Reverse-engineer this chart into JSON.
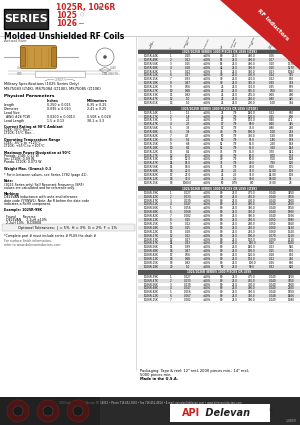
{
  "title_series": "SERIES",
  "title_series_bg": "#2d2d2d",
  "title_series_fg": "#ffffff",
  "product_names": [
    "1025R, 1026R",
    "1025",
    "1026"
  ],
  "product_subtitle": "Molded Unshielded RF Coils",
  "product_color": "#cc2222",
  "corner_label": "RF Inductors",
  "corner_color": "#cc2222",
  "bg_color": "#ffffff",
  "table_header_bg": "#555555",
  "table_alt_row": "#e0e0e0",
  "table1_title": "1025/1025R SERIES 1000 PIECES OR LESS (LT4K)",
  "table2_title": "1025/1025R SERIES 1000 PIECES OR LESS (LT10K)",
  "table3_title": "1026/1026R SERIES 1000 PIECES OR LESS (LT4K)",
  "table4_title": "1026/1026R SERIES 1000 PIECES OR LESS",
  "diag_headers": [
    "Part Number",
    "Inductance (uH)",
    "Tolerance",
    "Q Min",
    "Test Freq (MHz)",
    "SRF (MHz) Min",
    "DC Res (Ohms) Max",
    "Current Rating (mA) Max"
  ],
  "bottom_bar_color": "#3a3a3a",
  "actual_size_text": "Actual Size",
  "mil_spec_text": "Military Specifications (1025 Series Only)\nMS75083 (LT4K), MS75084 (LT10K), MS75085 (LT10K)",
  "phys_param_text": "Physical Parameters",
  "phys_rows": [
    [
      "",
      "Inches",
      "Millimeters"
    ],
    [
      "Length",
      "0.250 ± 0.015",
      "6.35 ± 0.25"
    ],
    [
      "Diameter",
      "0.095 ± 0.010",
      "2.41 ± 0.25"
    ],
    [
      "Lead Size",
      "",
      ""
    ],
    [
      "  AWG #26 TCW",
      "0.0200 ± 0.0013",
      "0.508 ± 0.028"
    ],
    [
      "Lead Length",
      "1.5 ± 0.13",
      "38.1 ± 3.3"
    ]
  ],
  "notes_lines": [
    [
      "bold",
      "Current Rating at 90°C Ambiant"
    ],
    [
      "normal",
      "LT4K: 30°C Rise..."
    ],
    [
      "normal",
      "LT10K: 15°C Rise..."
    ],
    [
      "normal",
      ""
    ],
    [
      "bold",
      "Operating Temperature Range"
    ],
    [
      "normal",
      "LT4K: -65°C to +125°C"
    ],
    [
      "normal",
      "LT10K: +65°C to +105°C"
    ],
    [
      "normal",
      ""
    ],
    [
      "bold",
      "Maximum Power Dissipation at 90°C"
    ],
    [
      "normal",
      "Prewds: LT4K: 0.21 W"
    ],
    [
      "normal",
      "Ins: LT10K: 0.09 W"
    ],
    [
      "normal",
      "Panda: LT10K: 0.073 W"
    ],
    [
      "normal",
      ""
    ],
    [
      "bold",
      "Weight Max. (Grams): 0.3"
    ],
    [
      "normal",
      ""
    ],
    [
      "normal",
      "* For in-between values, see Series 1782 (page 41)."
    ],
    [
      "normal",
      ""
    ],
    [
      "bold",
      "Note:"
    ],
    [
      "normal",
      "(1025 Series only) Self Resonant Frequency (SRF)"
    ],
    [
      "normal",
      "values are calculated and for reference only."
    ],
    [
      "normal",
      ""
    ],
    [
      "bold",
      "Marking:"
    ],
    [
      "normal",
      "DELEVAN inductance with units and tolerance"
    ],
    [
      "normal",
      "date code (YYWWL). Note: An R before the date code"
    ],
    [
      "normal",
      "indicates a RoHS component."
    ],
    [
      "normal",
      ""
    ],
    [
      "bold",
      "Example: 1025R-99K"
    ],
    [
      "normal",
      ""
    ],
    [
      "normal",
      "  Found       Reverse"
    ],
    [
      "normal",
      "  DELEVAN     2.2uH ±10%"
    ],
    [
      "normal",
      "  2.2uH 10%   R-D0808"
    ]
  ],
  "optional_tol": "Optional Tolerances:  J = 5%  H = 3%  G = 2%  F = 1%",
  "complete_pn": "*Complete part # must include series # PLUS the dash #",
  "surface_finish1": "For surface finish information,",
  "surface_finish2": "refer to www.delevaninductors.com",
  "footer1": "Packaging  Tape & reel: 12\" reel, 2000 pieces min.; 14\" reel,",
  "footer2": "5000 pieces min.",
  "footer3": "Made in the U.S.A.",
  "bottom_info": "370 Coulter Rd., East Aurora, NY 14052 • Phone 716-652-3600 • Fax 716-652-4814 • E-mail: apisales@delevan.com • www.delevaninductors.com",
  "date_code": "1.0809",
  "table1_rows": [
    [
      "-44K",
      "1",
      "0.10",
      "±10%",
      "80",
      "25.0",
      "480.0",
      "0.06",
      "1690"
    ],
    [
      "-48K",
      "2",
      "0.12",
      "±10%",
      "54",
      "25.0",
      "480.0",
      "0.07",
      "1530"
    ],
    [
      "-56K",
      "3",
      "0.15",
      "±10%",
      "54",
      "25.0",
      "480.0",
      "0.10",
      "1370"
    ],
    [
      "-68K",
      "4",
      "0.18",
      "±10%",
      "44",
      "25.0",
      "380.0",
      "0.10",
      "1270"
    ],
    [
      "-82K",
      "5",
      "0.22",
      "±10%",
      "35",
      "25.0",
      "350.0",
      "0.13",
      "1084"
    ],
    [
      "-12K",
      "6",
      "0.27",
      "±10%",
      "30",
      "25.0",
      "430.0",
      "0.14",
      "975"
    ],
    [
      "-15K",
      "7",
      "0.33",
      "±10%",
      "30",
      "25.0",
      "410.0",
      "0.22",
      "850"
    ],
    [
      "-18K",
      "8",
      "0.47",
      "±10%",
      "30",
      "25.0",
      "365.0",
      "0.30",
      "718"
    ],
    [
      "-22K",
      "9",
      "0.56",
      "±10%",
      "25",
      "25.0",
      "310.0",
      "0.35",
      "659"
    ],
    [
      "-27K",
      "10",
      "0.68",
      "±10%",
      "25",
      "25.0",
      "305.0",
      "0.50",
      "550"
    ],
    [
      "-33K",
      "11",
      "0.82",
      "±10%",
      "25",
      "25.0",
      "285.0",
      "0.60",
      "490"
    ],
    [
      "-47K",
      "12",
      "1.0",
      "±10%",
      "25",
      "25.0",
      "260.0",
      "0.80",
      "425"
    ],
    [
      "-01K",
      "13",
      "1.0",
      "±10%",
      "25",
      "25.0",
      "200.0",
      "1.00",
      "366"
    ]
  ],
  "table2_rows": [
    [
      "-24K",
      "1",
      "1.5",
      "±10%",
      "25",
      "7.9",
      "140.0",
      "0.22",
      "650"
    ],
    [
      "-27K",
      "2",
      "1.8",
      "±10%",
      "25",
      "7.9",
      "120.0",
      "0.25",
      "600"
    ],
    [
      "-33K",
      "3",
      "2.2",
      "±10%",
      "17",
      "7.9",
      "110.0",
      "0.40",
      "411"
    ],
    [
      "-47K",
      "4",
      "2.7",
      "±10%",
      "17",
      "7.9",
      "90.0",
      "0.60",
      "345"
    ],
    [
      "-56K",
      "5",
      "3.3",
      "±10%",
      "17",
      "7.9",
      "75.0",
      "0.80",
      "260"
    ],
    [
      "-68K",
      "6",
      "3.9",
      "±10%",
      "40",
      "7.9",
      "800.0",
      "1.00",
      "263"
    ],
    [
      "-82K",
      "7",
      "4.7",
      "±10%",
      "50",
      "7.9",
      "750.0",
      "1.50",
      "198"
    ],
    [
      "-12K",
      "8",
      "5.6",
      "±10%",
      "50",
      "7.9",
      "65.0",
      "1.80",
      "188"
    ],
    [
      "-15K",
      "9",
      "6.8",
      "±10%",
      "52",
      "7.9",
      "55.0",
      "2.50",
      "163"
    ],
    [
      "-18K",
      "10",
      "8.2",
      "±10%",
      "52",
      "7.9",
      "55.0",
      "3.50",
      "144"
    ],
    [
      "-22K",
      "11",
      "8.2",
      "±10%",
      "45",
      "7.9",
      "55.0",
      "3.70",
      "141"
    ],
    [
      "-27K",
      "12",
      "10.0",
      "±10%",
      "40",
      "7.9",
      "50.0",
      "5.00",
      "133"
    ],
    [
      "-33K",
      "13",
      "12.0",
      "±10%",
      "40",
      "7.9",
      "50.0",
      "5.50",
      "128"
    ],
    [
      "-47K",
      "14",
      "15.0",
      "±10%",
      "35",
      "7.9",
      "40.0",
      "7.50",
      "120"
    ],
    [
      "-56K",
      "15",
      "18.0",
      "±10%",
      "35",
      "7.9",
      "40.0",
      "9.50",
      "115"
    ],
    [
      "-68K",
      "16",
      "22.0",
      "±10%",
      "25",
      "2.5",
      "35.0",
      "12.00",
      "108"
    ],
    [
      "-82K",
      "17",
      "27.0",
      "±10%",
      "25",
      "2.5",
      "35.0",
      "14.00",
      "103"
    ],
    [
      "-12K",
      "18",
      "33.0",
      "±10%",
      "25",
      "2.5",
      "30.0",
      "18.00",
      "95"
    ],
    [
      "-15K",
      "19",
      "1000.0",
      "±10%",
      "50",
      "0.79",
      "8.0",
      "73.00",
      "28"
    ]
  ],
  "table3_rows": [
    [
      "-39K",
      "1",
      "0.027",
      "±10%",
      "80",
      "25.0",
      "475.0",
      "0.040",
      "3250"
    ],
    [
      "-42K",
      "2",
      "0.033",
      "±10%",
      "80",
      "25.0",
      "450.0",
      "0.040",
      "3050"
    ],
    [
      "-47K",
      "3",
      "0.039",
      "±10%",
      "80",
      "25.0",
      "430.0",
      "0.040",
      "2800"
    ],
    [
      "-51K",
      "4",
      "0.047",
      "±10%",
      "80",
      "25.0",
      "400.0",
      "0.040",
      "2500"
    ],
    [
      "-56K",
      "5",
      "0.056",
      "±10%",
      "80",
      "25.0",
      "380.0",
      "0.040",
      "1850"
    ],
    [
      "-68K",
      "6",
      "0.068",
      "±10%",
      "80",
      "25.0",
      "350.0",
      "0.040",
      "1800"
    ],
    [
      "-82K",
      "7",
      "0.082",
      "±10%",
      "80",
      "25.0",
      "300.0",
      "0.040",
      "1706"
    ],
    [
      "-12K",
      "8",
      "0.10",
      "±10%",
      "80",
      "25.0",
      "280.0",
      "0.050",
      "1680"
    ],
    [
      "-15K",
      "9",
      "0.12",
      "±10%",
      "80",
      "25.0",
      "260.0",
      "0.050",
      "1560"
    ],
    [
      "-18K",
      "10",
      "0.15",
      "±10%",
      "80",
      "25.0",
      "250.0",
      "0.060",
      "1420"
    ],
    [
      "-22K",
      "11",
      "0.18",
      "±10%",
      "80",
      "25.0",
      "210.0",
      "0.060",
      "1320"
    ],
    [
      "-27K",
      "12",
      "0.22",
      "±10%",
      "80",
      "25.0",
      "190.0",
      "0.070",
      "1210"
    ],
    [
      "-33K",
      "13",
      "0.27",
      "±10%",
      "80",
      "25.0",
      "170.0",
      "0.090",
      "1110"
    ],
    [
      "-47K",
      "14",
      "0.33",
      "±10%",
      "80",
      "25.0",
      "150.0",
      "0.10",
      "1020"
    ],
    [
      "-56K",
      "15",
      "0.39",
      "±10%",
      "80",
      "25.0",
      "140.0",
      "0.13",
      "940"
    ],
    [
      "-68K",
      "16",
      "0.47",
      "±10%",
      "80",
      "25.0",
      "130.0",
      "0.15",
      "870"
    ],
    [
      "-82K",
      "17",
      "0.56",
      "±10%",
      "80",
      "25.0",
      "120.0",
      "0.18",
      "810"
    ],
    [
      "-12K",
      "18",
      "0.68",
      "±10%",
      "80",
      "25.0",
      "110.0",
      "0.22",
      "740"
    ],
    [
      "-15K",
      "19",
      "0.82",
      "±10%",
      "80",
      "25.0",
      "100.0",
      "0.26",
      "680"
    ],
    [
      "-18K",
      "20",
      "1.0",
      "±10%",
      "50",
      "25.0",
      "90.0",
      "0.32",
      "620"
    ]
  ],
  "table4_rows": [
    [
      "-39K",
      "1",
      "0.027",
      "±10%",
      "80",
      "25.0",
      "475.0",
      "0.040",
      "3250"
    ],
    [
      "-47K",
      "2",
      "0.033",
      "±10%",
      "80",
      "25.0",
      "450.0",
      "0.040",
      "3050"
    ],
    [
      "-56K",
      "3",
      "0.039",
      "±10%",
      "80",
      "25.0",
      "430.0",
      "0.040",
      "2800"
    ],
    [
      "-68K",
      "4",
      "0.047",
      "±10%",
      "80",
      "25.0",
      "400.0",
      "0.040",
      "2500"
    ],
    [
      "-82K",
      "5",
      "0.056",
      "±10%",
      "80",
      "25.0",
      "380.0",
      "0.040",
      "1850"
    ],
    [
      "-12K",
      "6",
      "0.067",
      "±10%",
      "80",
      "25.0",
      "350.0",
      "0.048",
      "1406"
    ],
    [
      "-15K",
      "7",
      "0.082",
      "±10%",
      "80",
      "25.0",
      "300.0",
      "0.049",
      "1380"
    ]
  ]
}
